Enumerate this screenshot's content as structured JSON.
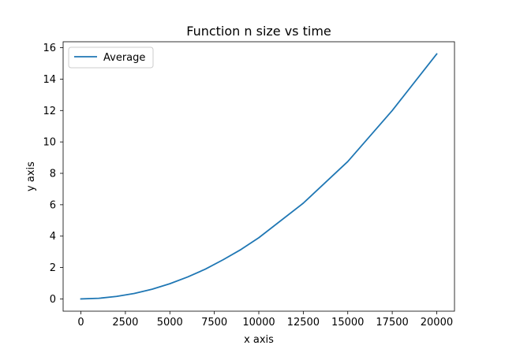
{
  "chart_data": {
    "type": "line",
    "title": "Function n size vs time",
    "xlabel": "x axis",
    "ylabel": "y axis",
    "xlim": [
      -1000,
      21000
    ],
    "ylim": [
      -0.78,
      16.38
    ],
    "xticks": [
      0,
      2500,
      5000,
      7500,
      10000,
      12500,
      15000,
      17500,
      20000
    ],
    "yticks": [
      0,
      2,
      4,
      6,
      8,
      10,
      12,
      14,
      16
    ],
    "grid": false,
    "legend_position": "top-left",
    "series": [
      {
        "name": "Average",
        "color": "#1f77b4",
        "x": [
          0,
          1000,
          2000,
          3000,
          4000,
          5000,
          6000,
          7000,
          8000,
          9000,
          10000,
          12500,
          15000,
          17500,
          20000
        ],
        "y": [
          0,
          0.04,
          0.16,
          0.35,
          0.62,
          0.97,
          1.4,
          1.9,
          2.5,
          3.15,
          3.9,
          6.1,
          8.75,
          12.0,
          15.6
        ]
      }
    ]
  }
}
